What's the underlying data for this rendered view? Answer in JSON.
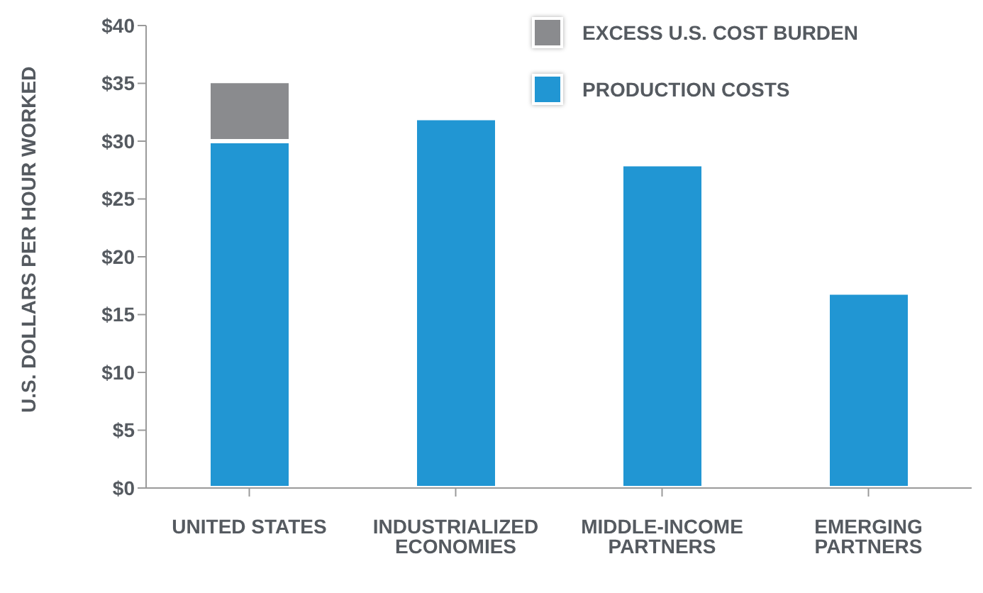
{
  "chart_data": {
    "type": "bar",
    "ylabel": "U.S. DOLLARS PER HOUR WORKED",
    "categories": [
      "UNITED STATES",
      "INDUSTRIALIZED ECONOMIES",
      "MIDDLE-INCOME PARTNERS",
      "EMERGING PARTNERS"
    ],
    "stacked": true,
    "series": [
      {
        "name": "PRODUCTION COSTS",
        "color": "#2196d3",
        "values": [
          30,
          32,
          28,
          16.9
        ]
      },
      {
        "name": "EXCESS U.S. COST BURDEN",
        "color": "#8a8b8e",
        "values": [
          5.2,
          null,
          null,
          null
        ]
      }
    ],
    "ylim": [
      0,
      40
    ],
    "yticks": [
      {
        "value": 0,
        "label": "$0"
      },
      {
        "value": 5,
        "label": "$5"
      },
      {
        "value": 10,
        "label": "$10"
      },
      {
        "value": 15,
        "label": "$15"
      },
      {
        "value": 20,
        "label": "$20"
      },
      {
        "value": 25,
        "label": "$25"
      },
      {
        "value": 30,
        "label": "$30"
      },
      {
        "value": 35,
        "label": "$35"
      },
      {
        "value": 40,
        "label": "$40"
      }
    ],
    "grid": false,
    "legend": "top right"
  }
}
